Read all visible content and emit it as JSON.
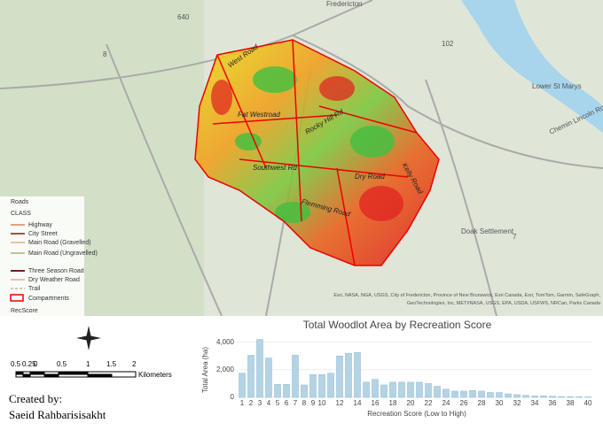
{
  "map": {
    "places": [
      "Fredericton",
      "Lower St Marys",
      "Doak Settlement",
      "Chemin Lincoln Road"
    ],
    "shields": [
      "640",
      "8",
      "102",
      "7"
    ],
    "roads": [
      "West Road",
      "Fat Westroad",
      "Rocky Hill Rd",
      "Southwest Rd",
      "Flemming Road",
      "Dry Road",
      "Kelly Road"
    ],
    "attribution": "Esri, NASA, NGA, USGS, City of Fredericton, Province of New Brunswick, Esri Canada, Esri, TomTom, Garmin, SafeGraph, GeoTechnologies, Inc, METI/NASA, USGS, EPA, USDA, USFWS, NRCan, Parks Canada"
  },
  "legend": {
    "title": "Roads",
    "field": "CLASS",
    "items": [
      "Highway",
      "City Street",
      "Main Road (Gravelled)",
      "Main Road (Ungravelled)",
      "Three Season Road",
      "Dry Weather Road",
      "Trail"
    ],
    "compartments": "Compartments",
    "score": "RecScore"
  },
  "scale_bar": {
    "labels": [
      "0.5",
      "0.25",
      "0",
      "0.5",
      "1",
      "1.5",
      "2"
    ],
    "unit": "Kilometers"
  },
  "credit": {
    "label": "Created by:",
    "name": "Saeid Rahbarisisakht"
  },
  "chart_data": {
    "type": "bar",
    "title": "Total Woodlot Area by Recreation Score",
    "x_label": "Recreation Score (Low to High)",
    "y_label": "Total Area (ha)",
    "categories": [
      "1",
      "2",
      "3",
      "4",
      "5",
      "6",
      "7",
      "8",
      "9",
      "10",
      null,
      "12",
      null,
      "14",
      null,
      "16",
      null,
      "18",
      null,
      "20",
      null,
      "22",
      null,
      "24",
      null,
      "26",
      null,
      "28",
      null,
      "30",
      null,
      "32",
      null,
      "34",
      null,
      "36",
      null,
      "38",
      null,
      "40"
    ],
    "values": [
      1750,
      3050,
      4200,
      2850,
      950,
      950,
      3050,
      900,
      1650,
      1650,
      1750,
      3000,
      3200,
      3250,
      1100,
      1300,
      900,
      1100,
      1100,
      1100,
      1100,
      1000,
      800,
      600,
      450,
      450,
      500,
      450,
      350,
      350,
      250,
      200,
      150,
      100,
      100,
      80,
      60,
      50,
      40,
      30
    ],
    "color": "#b4d4e6",
    "ylim": [
      0,
      4300
    ],
    "yticks": [
      {
        "value": 0,
        "label": "0"
      },
      {
        "value": 2000,
        "label": "2,000"
      },
      {
        "value": 4000,
        "label": "4,000"
      }
    ],
    "grid": true
  }
}
